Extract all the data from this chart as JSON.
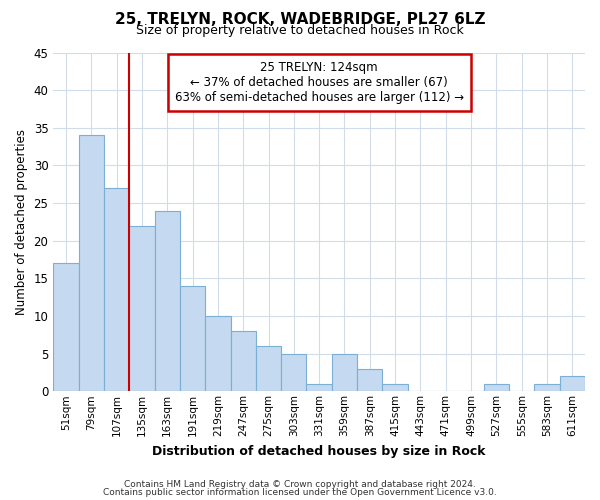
{
  "title": "25, TRELYN, ROCK, WADEBRIDGE, PL27 6LZ",
  "subtitle": "Size of property relative to detached houses in Rock",
  "xlabel": "Distribution of detached houses by size in Rock",
  "ylabel": "Number of detached properties",
  "bar_color": "#c5d9f0",
  "bar_edge_color": "#7bafd4",
  "bin_labels": [
    "51sqm",
    "79sqm",
    "107sqm",
    "135sqm",
    "163sqm",
    "191sqm",
    "219sqm",
    "247sqm",
    "275sqm",
    "303sqm",
    "331sqm",
    "359sqm",
    "387sqm",
    "415sqm",
    "443sqm",
    "471sqm",
    "499sqm",
    "527sqm",
    "555sqm",
    "583sqm",
    "611sqm"
  ],
  "bar_heights": [
    17,
    34,
    27,
    22,
    24,
    14,
    10,
    8,
    6,
    5,
    1,
    5,
    3,
    1,
    0,
    0,
    0,
    1,
    0,
    1,
    2
  ],
  "vline_color": "#cc0000",
  "ylim": [
    0,
    45
  ],
  "yticks": [
    0,
    5,
    10,
    15,
    20,
    25,
    30,
    35,
    40,
    45
  ],
  "annotation_title": "25 TRELYN: 124sqm",
  "annotation_line1": "← 37% of detached houses are smaller (67)",
  "annotation_line2": "63% of semi-detached houses are larger (112) →",
  "footer_line1": "Contains HM Land Registry data © Crown copyright and database right 2024.",
  "footer_line2": "Contains public sector information licensed under the Open Government Licence v3.0.",
  "background_color": "#ffffff",
  "grid_color": "#d0dce8"
}
